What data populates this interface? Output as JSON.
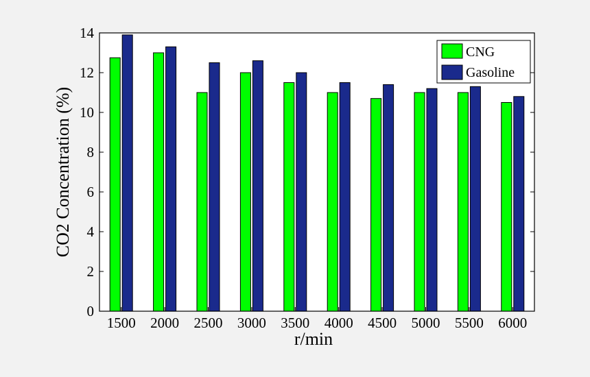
{
  "chart_data": {
    "type": "bar",
    "categories": [
      "1500",
      "2000",
      "2500",
      "3000",
      "3500",
      "4000",
      "4500",
      "5000",
      "5500",
      "6000"
    ],
    "series": [
      {
        "name": "CNG",
        "color": "#00ff00",
        "values": [
          12.75,
          13.0,
          11.0,
          12.0,
          11.5,
          11.0,
          10.7,
          11.0,
          11.0,
          10.5
        ]
      },
      {
        "name": "Gasoline",
        "color": "#1a2a8c",
        "values": [
          13.9,
          13.3,
          12.5,
          12.6,
          12.0,
          11.5,
          11.4,
          11.2,
          11.3,
          10.8
        ]
      }
    ],
    "xlabel": "r/min",
    "ylabel": "CO2 Concentration (%)",
    "ylim": [
      0,
      14
    ],
    "yticks": [
      0,
      2,
      4,
      6,
      8,
      10,
      12,
      14
    ],
    "grid": false,
    "legend_position": "top-right"
  }
}
